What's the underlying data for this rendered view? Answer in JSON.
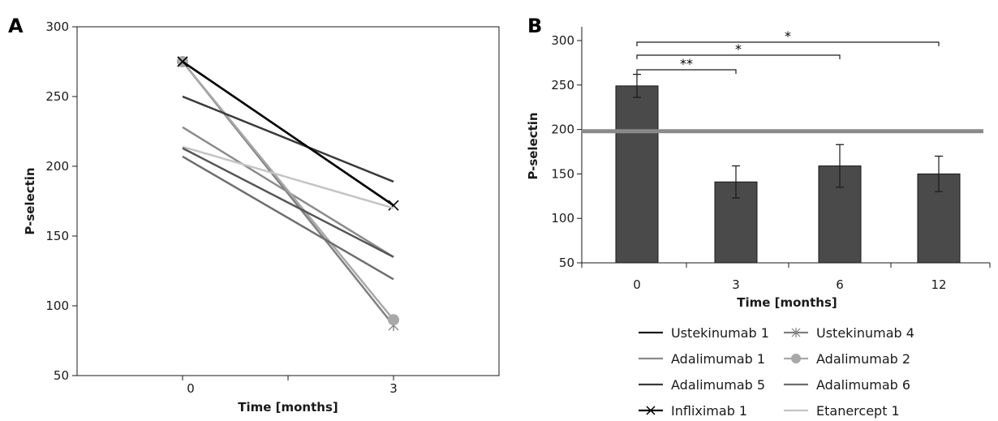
{
  "chart_data": [
    {
      "panel_label": "A",
      "type": "line",
      "xlabel": "Time [months]",
      "ylabel": "P-selectin",
      "categories": [
        "0",
        "3"
      ],
      "ylim": [
        50,
        300
      ],
      "yticks": [
        "50",
        "100",
        "150",
        "200",
        "250",
        "300"
      ],
      "grid": false,
      "series": [
        {
          "name": "Ustekinumab 1",
          "values": [
            275,
            172
          ],
          "color": "#1a1a1a",
          "marker": "none"
        },
        {
          "name": "Ustekinumab 4",
          "values": [
            275,
            86
          ],
          "color": "#808080",
          "marker": "star"
        },
        {
          "name": "Adalimumab 1",
          "values": [
            228,
            135
          ],
          "color": "#8a8a8a",
          "marker": "none"
        },
        {
          "name": "Adalimumab 2",
          "values": [
            275,
            90
          ],
          "color": "#a8a8a8",
          "marker": "circle"
        },
        {
          "name": "Adalimumab 5",
          "values": [
            250,
            189
          ],
          "color": "#3a3a3a",
          "marker": "none"
        },
        {
          "name": "Adalimumab 6",
          "values": [
            207,
            119
          ],
          "color": "#6e6e6e",
          "marker": "none"
        },
        {
          "name": "Infliximab 1",
          "values": [
            275,
            172
          ],
          "color": "#000000",
          "marker": "x"
        },
        {
          "name": "Etanercept 1",
          "values": [
            214,
            170
          ],
          "color": "#c4c4c4",
          "marker": "none"
        },
        {
          "name": "",
          "values": [
            213,
            135
          ],
          "color": "#555555",
          "marker": "none"
        }
      ]
    },
    {
      "panel_label": "B",
      "type": "bar",
      "xlabel": "Time [months]",
      "ylabel": "P-selectin",
      "categories": [
        "0",
        "3",
        "6",
        "12"
      ],
      "values": [
        249,
        141,
        159,
        150
      ],
      "error": [
        13,
        18,
        24,
        20
      ],
      "ylim": [
        50,
        300
      ],
      "yticks": [
        "50",
        "100",
        "150",
        "200",
        "250",
        "300"
      ],
      "reference_line": 198,
      "bar_color": "#4a4a4a",
      "reference_color": "#8a8a8a",
      "significance": [
        {
          "from": "0",
          "to": "3",
          "label": "**"
        },
        {
          "from": "0",
          "to": "6",
          "label": "*"
        },
        {
          "from": "0",
          "to": "12",
          "label": "*"
        }
      ]
    }
  ]
}
